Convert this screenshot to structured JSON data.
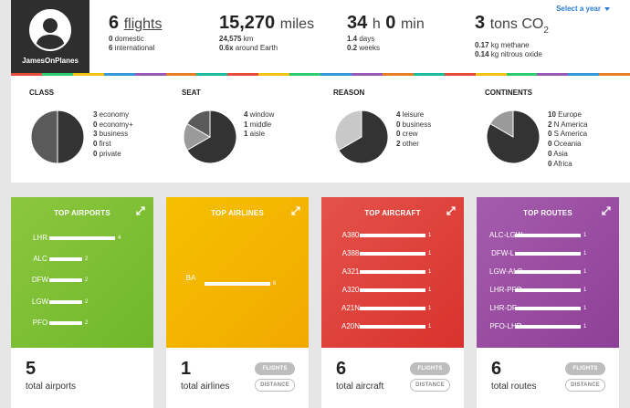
{
  "header": {
    "username": "JamesOnPlanes",
    "select_year": "Select a year",
    "flights": {
      "value": "6",
      "unit": "flights",
      "lines": [
        {
          "n": "0",
          "t": " domestic"
        },
        {
          "n": "6",
          "t": " international"
        }
      ]
    },
    "miles": {
      "value": "15,270",
      "unit": "miles",
      "lines": [
        {
          "n": "24,575",
          "t": " km"
        },
        {
          "n": "0.6x",
          "t": " around Earth"
        }
      ]
    },
    "time": {
      "hours": "34",
      "h": "h",
      "minutes": "0",
      "m": "min",
      "lines": [
        {
          "n": "1.4",
          "t": " days"
        },
        {
          "n": "0.2",
          "t": " weeks"
        }
      ]
    },
    "co2": {
      "value": "3",
      "unit": "tons CO",
      "sub": "2",
      "lines": [
        {
          "n": "0.17",
          "t": " kg methane"
        },
        {
          "n": "0.14",
          "t": " kg nitrous oxide"
        }
      ]
    },
    "stripe_colors": [
      "#e74c3c",
      "#2ecc71",
      "#f1c40f",
      "#3498db",
      "#9b59b6",
      "#e67e22",
      "#1abc9c",
      "#e74c3c",
      "#f1c40f",
      "#2ecc71",
      "#3498db",
      "#9b59b6",
      "#e67e22",
      "#1abc9c",
      "#e74c3c",
      "#f1c40f",
      "#2ecc71",
      "#9b59b6",
      "#3498db",
      "#e67e22"
    ]
  },
  "breakdown": [
    {
      "key": "class",
      "title": "CLASS",
      "items": [
        {
          "n": "3",
          "t": " economy"
        },
        {
          "n": "0",
          "t": " economy+"
        },
        {
          "n": "3",
          "t": " business"
        },
        {
          "n": "0",
          "t": " first"
        },
        {
          "n": "0",
          "t": " private"
        }
      ]
    },
    {
      "key": "seat",
      "title": "SEAT",
      "items": [
        {
          "n": "4",
          "t": " window"
        },
        {
          "n": "1",
          "t": " middle"
        },
        {
          "n": "1",
          "t": " aisle"
        }
      ]
    },
    {
      "key": "reason",
      "title": "REASON",
      "items": [
        {
          "n": "4",
          "t": " leisure"
        },
        {
          "n": "0",
          "t": " business"
        },
        {
          "n": "0",
          "t": " crew"
        },
        {
          "n": "2",
          "t": " other"
        }
      ]
    },
    {
      "key": "continents",
      "title": "CONTINENTS",
      "items": [
        {
          "n": "10",
          "t": " Europe"
        },
        {
          "n": "2",
          "t": " N America"
        },
        {
          "n": "0",
          "t": " S America"
        },
        {
          "n": "0",
          "t": " Oceania"
        },
        {
          "n": "0",
          "t": " Asia"
        },
        {
          "n": "0",
          "t": " Africa"
        }
      ]
    }
  ],
  "cards": [
    {
      "key": "airports",
      "title": "TOP AIRPORTS",
      "color": "#6fb82a",
      "gradient_to": "#8cc63f",
      "count": "5",
      "label": "total airports",
      "show_pills": false,
      "rows": [
        {
          "label": "LHR",
          "value": 4
        },
        {
          "label": "ALC",
          "value": 2
        },
        {
          "label": "DFW",
          "value": 2
        },
        {
          "label": "LGW",
          "value": 2
        },
        {
          "label": "PFO",
          "value": 2
        }
      ]
    },
    {
      "key": "airlines",
      "title": "TOP AIRLINES",
      "color": "#f2a900",
      "gradient_to": "#f5c000",
      "count": "1",
      "label": "total airlines",
      "show_pills": true,
      "rows": [
        {
          "label": "BA",
          "value": 6
        }
      ]
    },
    {
      "key": "aircraft",
      "title": "TOP AIRCRAFT",
      "color": "#d9322d",
      "gradient_to": "#e3524a",
      "count": "6",
      "label": "total aircraft",
      "show_pills": true,
      "rows": [
        {
          "label": "A380",
          "value": 1
        },
        {
          "label": "A388",
          "value": 1
        },
        {
          "label": "A321",
          "value": 1
        },
        {
          "label": "A320",
          "value": 1
        },
        {
          "label": "A21N",
          "value": 1
        },
        {
          "label": "A20N",
          "value": 1
        }
      ]
    },
    {
      "key": "routes",
      "title": "TOP ROUTES",
      "color": "#8e3f97",
      "gradient_to": "#a55cad",
      "count": "6",
      "label": "total routes",
      "show_pills": true,
      "rows": [
        {
          "label": "ALC-LGW",
          "value": 1
        },
        {
          "label": "DFW-L...",
          "value": 1
        },
        {
          "label": "LGW-ALC",
          "value": 1
        },
        {
          "label": "LHR-PFO",
          "value": 1
        },
        {
          "label": "LHR-DF...",
          "value": 1
        },
        {
          "label": "PFO-LHR",
          "value": 1
        }
      ]
    }
  ],
  "pill_labels": {
    "flights": "FLIGHTS",
    "distance": "DISTANCE"
  },
  "pie_colors": [
    "#333333",
    "#9a9a9a",
    "#5a5a5a",
    "#c8c8c8",
    "#777777",
    "#b0b0b0"
  ]
}
